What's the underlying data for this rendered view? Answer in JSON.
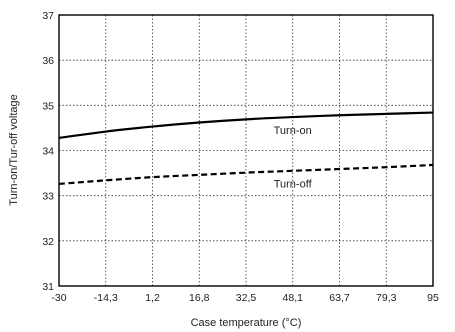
{
  "chart_data": {
    "type": "line",
    "title": "",
    "xlabel": "Case temperature (°C)",
    "ylabel": "Turn-on/Tur-off voltage",
    "x_tick_labels": [
      "-30",
      "-14,3",
      "1,2",
      "16,8",
      "32,5",
      "48,1",
      "63,7",
      "79,3",
      "95"
    ],
    "y_tick_labels": [
      "31",
      "32",
      "33",
      "34",
      "35",
      "36",
      "37"
    ],
    "xlim": [
      -30,
      95
    ],
    "ylim": [
      31,
      37
    ],
    "grid": true,
    "series": [
      {
        "name": "Turn-on",
        "style": "solid",
        "color": "#000000",
        "x": [
          -30,
          -14.3,
          1.2,
          16.8,
          32.5,
          48.1,
          63.7,
          79.3,
          95
        ],
        "y": [
          34.28,
          34.42,
          34.53,
          34.62,
          34.69,
          34.74,
          34.78,
          34.81,
          34.84
        ]
      },
      {
        "name": "Turn-off",
        "style": "dashed",
        "color": "#000000",
        "x": [
          -30,
          -14.3,
          1.2,
          16.8,
          32.5,
          48.1,
          63.7,
          79.3,
          95
        ],
        "y": [
          33.26,
          33.34,
          33.41,
          33.46,
          33.51,
          33.55,
          33.59,
          33.63,
          33.68
        ]
      }
    ],
    "annotations": [
      {
        "text": "Turn-on",
        "x": 48.1,
        "y": 34.45
      },
      {
        "text": "Turn-off",
        "x": 48.1,
        "y": 33.27
      }
    ]
  }
}
